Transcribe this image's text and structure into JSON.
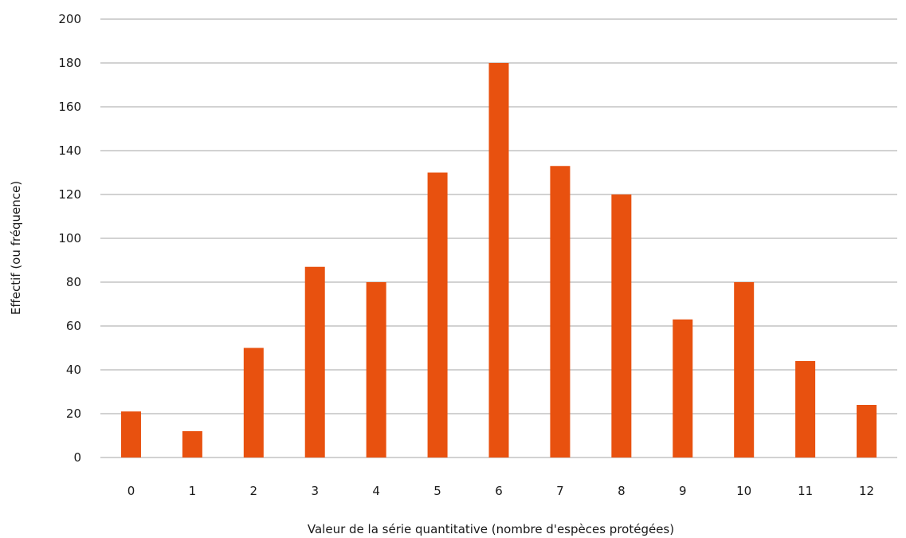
{
  "chart_data": {
    "type": "bar",
    "title": "",
    "xlabel": "Valeur de la série quantitative (nombre d'espèces protégées)",
    "ylabel": "Effectif (ou fréquence)",
    "categories": [
      "0",
      "1",
      "2",
      "3",
      "4",
      "5",
      "6",
      "7",
      "8",
      "9",
      "10",
      "11",
      "12"
    ],
    "values": [
      21,
      12,
      50,
      87,
      80,
      130,
      180,
      133,
      120,
      63,
      80,
      44,
      24
    ],
    "ylim": [
      0,
      200
    ],
    "yticks": [
      0,
      20,
      40,
      60,
      80,
      100,
      120,
      140,
      160,
      180,
      200
    ],
    "grid": true,
    "legend": "none",
    "bar_color": "#e8510f",
    "grid_color": "#a6a6a6"
  }
}
